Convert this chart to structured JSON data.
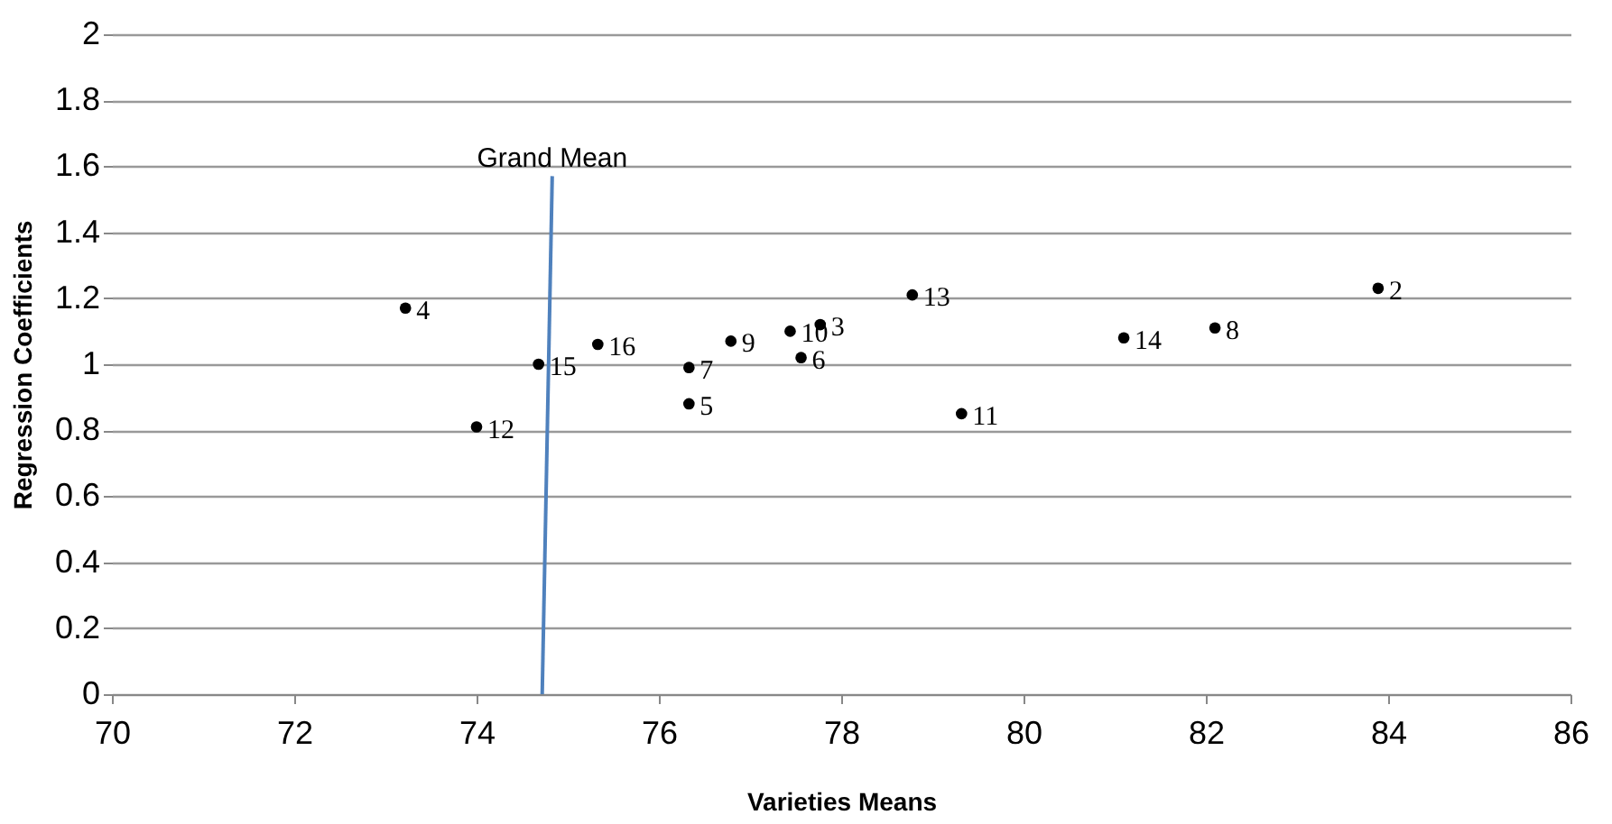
{
  "chart_data": {
    "type": "scatter",
    "xlabel": "Varieties Means",
    "ylabel": "Regression Coefficients",
    "xlim": [
      70,
      86
    ],
    "xticks": [
      70,
      72,
      74,
      76,
      78,
      80,
      82,
      84,
      86
    ],
    "ylim": [
      0,
      2
    ],
    "yticks": [
      0,
      0.2,
      0.4,
      0.6,
      0.8,
      1,
      1.2,
      1.4,
      1.6,
      1.8,
      2
    ],
    "grid": "y",
    "marker": "circle",
    "series": [
      {
        "color": "#000000",
        "x": [
          73.22,
          74.0,
          74.68,
          75.33,
          76.33,
          76.33,
          76.79,
          77.44,
          77.77,
          77.56,
          78.78,
          79.32,
          81.1,
          82.1,
          83.89
        ],
        "values": [
          1.17,
          0.81,
          1.0,
          1.06,
          0.99,
          0.88,
          1.07,
          1.1,
          1.12,
          1.02,
          1.21,
          0.85,
          1.08,
          1.11,
          1.23
        ]
      },
      {
        "type": "line",
        "name": "Grand Mean",
        "color": "#4f81bd",
        "marker": "none",
        "line_style": "solid",
        "x": [
          74.72,
          74.83
        ],
        "values": [
          0,
          1.57
        ]
      }
    ],
    "annotations": [
      {
        "text": "4",
        "x": 73.22,
        "y": 1.17
      },
      {
        "text": "12",
        "x": 74.0,
        "y": 0.81
      },
      {
        "text": "15",
        "x": 74.68,
        "y": 1.0
      },
      {
        "text": "16",
        "x": 75.33,
        "y": 1.06
      },
      {
        "text": "7",
        "x": 76.33,
        "y": 0.99
      },
      {
        "text": "5",
        "x": 76.33,
        "y": 0.88
      },
      {
        "text": "9",
        "x": 76.79,
        "y": 1.07
      },
      {
        "text": "10",
        "x": 77.44,
        "y": 1.1
      },
      {
        "text": "3",
        "x": 77.77,
        "y": 1.12
      },
      {
        "text": "6",
        "x": 77.56,
        "y": 1.02
      },
      {
        "text": "13",
        "x": 78.78,
        "y": 1.21
      },
      {
        "text": "11",
        "x": 79.32,
        "y": 0.85
      },
      {
        "text": "14",
        "x": 81.1,
        "y": 1.08
      },
      {
        "text": "8",
        "x": 82.1,
        "y": 1.11
      },
      {
        "text": "2",
        "x": 83.89,
        "y": 1.23
      }
    ]
  }
}
